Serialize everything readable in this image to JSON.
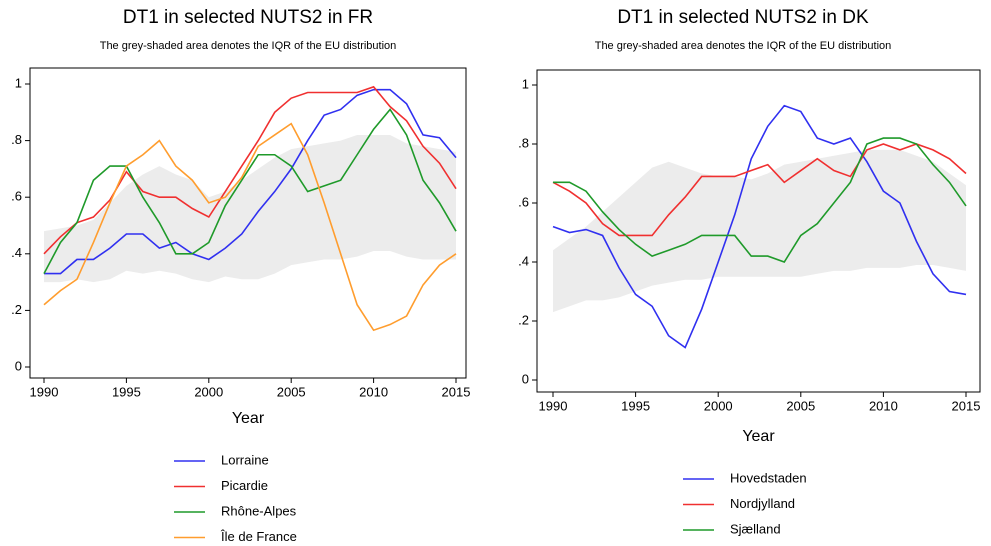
{
  "chart_data": [
    {
      "type": "line",
      "title": "DT1 in selected NUTS2 in FR",
      "subtitle": "The grey-shaded area denotes the IQR of the EU distribution",
      "x_label": "Year",
      "x": [
        1990,
        1991,
        1992,
        1993,
        1994,
        1995,
        1996,
        1997,
        1998,
        1999,
        2000,
        2001,
        2002,
        2003,
        2004,
        2005,
        2006,
        2007,
        2008,
        2009,
        2010,
        2011,
        2012,
        2013,
        2014,
        2015
      ],
      "xlim": [
        1990,
        2015
      ],
      "xticks": [
        1990,
        1995,
        2000,
        2005,
        2010,
        2015
      ],
      "ylim": [
        0,
        1
      ],
      "yticks": [
        0,
        {
          "value": 0.2,
          "label": ".2"
        },
        {
          "value": 0.4,
          "label": ".4"
        },
        {
          "value": 0.6,
          "label": ".6"
        },
        {
          "value": 0.8,
          "label": ".8"
        },
        1
      ],
      "iqr_band": {
        "color": "#ececec",
        "upper": [
          0.48,
          0.49,
          0.5,
          0.52,
          0.58,
          0.64,
          0.68,
          0.71,
          0.68,
          0.66,
          0.6,
          0.62,
          0.66,
          0.7,
          0.74,
          0.77,
          0.78,
          0.79,
          0.8,
          0.82,
          0.82,
          0.82,
          0.79,
          0.78,
          0.77,
          0.76
        ],
        "lower": [
          0.3,
          0.3,
          0.31,
          0.3,
          0.31,
          0.34,
          0.33,
          0.34,
          0.33,
          0.31,
          0.3,
          0.32,
          0.31,
          0.31,
          0.33,
          0.36,
          0.37,
          0.38,
          0.38,
          0.39,
          0.41,
          0.41,
          0.39,
          0.38,
          0.38,
          0.38
        ]
      },
      "series": [
        {
          "name": "Lorraine",
          "color": "#3030f0",
          "values": [
            0.33,
            0.33,
            0.38,
            0.38,
            0.42,
            0.47,
            0.47,
            0.42,
            0.44,
            0.4,
            0.38,
            0.42,
            0.47,
            0.55,
            0.62,
            0.7,
            0.8,
            0.89,
            0.91,
            0.96,
            0.98,
            0.98,
            0.93,
            0.82,
            0.81,
            0.74
          ]
        },
        {
          "name": "Picardie",
          "color": "#f03030",
          "values": [
            0.4,
            0.46,
            0.51,
            0.53,
            0.59,
            0.69,
            0.62,
            0.6,
            0.6,
            0.56,
            0.53,
            0.62,
            0.71,
            0.8,
            0.9,
            0.95,
            0.97,
            0.97,
            0.97,
            0.97,
            0.99,
            0.92,
            0.87,
            0.78,
            0.72,
            0.63
          ]
        },
        {
          "name": "Rhône-Alpes",
          "color": "#1f9a2a",
          "values": [
            0.33,
            0.44,
            0.51,
            0.66,
            0.71,
            0.71,
            0.6,
            0.51,
            0.4,
            0.4,
            0.44,
            0.57,
            0.66,
            0.75,
            0.75,
            0.71,
            0.62,
            0.64,
            0.66,
            0.75,
            0.84,
            0.91,
            0.82,
            0.66,
            0.58,
            0.48
          ]
        },
        {
          "name": "Île de France",
          "color": "#ff9d2e",
          "values": [
            0.22,
            0.27,
            0.31,
            0.44,
            0.58,
            0.71,
            0.75,
            0.8,
            0.71,
            0.66,
            0.58,
            0.6,
            0.67,
            0.78,
            0.82,
            0.86,
            0.75,
            0.58,
            0.4,
            0.22,
            0.13,
            0.15,
            0.18,
            0.29,
            0.36,
            0.4
          ]
        }
      ]
    },
    {
      "type": "line",
      "title": "DT1 in selected NUTS2 in DK",
      "subtitle": "The grey-shaded area denotes the IQR of the EU distribution",
      "x_label": "Year",
      "x": [
        1990,
        1991,
        1992,
        1993,
        1994,
        1995,
        1996,
        1997,
        1998,
        1999,
        2000,
        2001,
        2002,
        2003,
        2004,
        2005,
        2006,
        2007,
        2008,
        2009,
        2010,
        2011,
        2012,
        2013,
        2014,
        2015
      ],
      "xlim": [
        1990,
        2015
      ],
      "xticks": [
        1990,
        1995,
        2000,
        2005,
        2010,
        2015
      ],
      "ylim": [
        0,
        1
      ],
      "yticks": [
        0,
        {
          "value": 0.2,
          "label": ".2"
        },
        {
          "value": 0.4,
          "label": ".4"
        },
        {
          "value": 0.6,
          "label": ".6"
        },
        {
          "value": 0.8,
          "label": ".8"
        },
        1
      ],
      "iqr_band": {
        "color": "#ececec",
        "upper": [
          0.44,
          0.48,
          0.52,
          0.57,
          0.62,
          0.67,
          0.72,
          0.74,
          0.72,
          0.7,
          0.69,
          0.69,
          0.68,
          0.7,
          0.73,
          0.74,
          0.75,
          0.76,
          0.77,
          0.78,
          0.78,
          0.78,
          0.76,
          0.74,
          0.7,
          0.66
        ],
        "lower": [
          0.23,
          0.25,
          0.27,
          0.27,
          0.28,
          0.3,
          0.32,
          0.33,
          0.34,
          0.34,
          0.35,
          0.35,
          0.35,
          0.35,
          0.35,
          0.35,
          0.36,
          0.37,
          0.37,
          0.38,
          0.38,
          0.38,
          0.39,
          0.39,
          0.38,
          0.37
        ]
      },
      "series": [
        {
          "name": "Hovedstaden",
          "color": "#3030f0",
          "values": [
            0.52,
            0.5,
            0.51,
            0.49,
            0.38,
            0.29,
            0.25,
            0.15,
            0.11,
            0.24,
            0.4,
            0.56,
            0.75,
            0.86,
            0.93,
            0.91,
            0.82,
            0.8,
            0.82,
            0.74,
            0.64,
            0.6,
            0.47,
            0.36,
            0.3,
            0.29
          ]
        },
        {
          "name": "Nordjylland",
          "color": "#f03030",
          "values": [
            0.67,
            0.64,
            0.6,
            0.53,
            0.49,
            0.49,
            0.49,
            0.56,
            0.62,
            0.69,
            0.69,
            0.69,
            0.71,
            0.73,
            0.67,
            0.71,
            0.75,
            0.71,
            0.69,
            0.78,
            0.8,
            0.78,
            0.8,
            0.78,
            0.75,
            0.7
          ]
        },
        {
          "name": "Sjælland",
          "color": "#1f9a2a",
          "values": [
            0.67,
            0.67,
            0.64,
            0.57,
            0.51,
            0.46,
            0.42,
            0.44,
            0.46,
            0.49,
            0.49,
            0.49,
            0.42,
            0.42,
            0.4,
            0.49,
            0.53,
            0.6,
            0.67,
            0.8,
            0.82,
            0.82,
            0.8,
            0.73,
            0.67,
            0.59
          ]
        }
      ]
    }
  ]
}
